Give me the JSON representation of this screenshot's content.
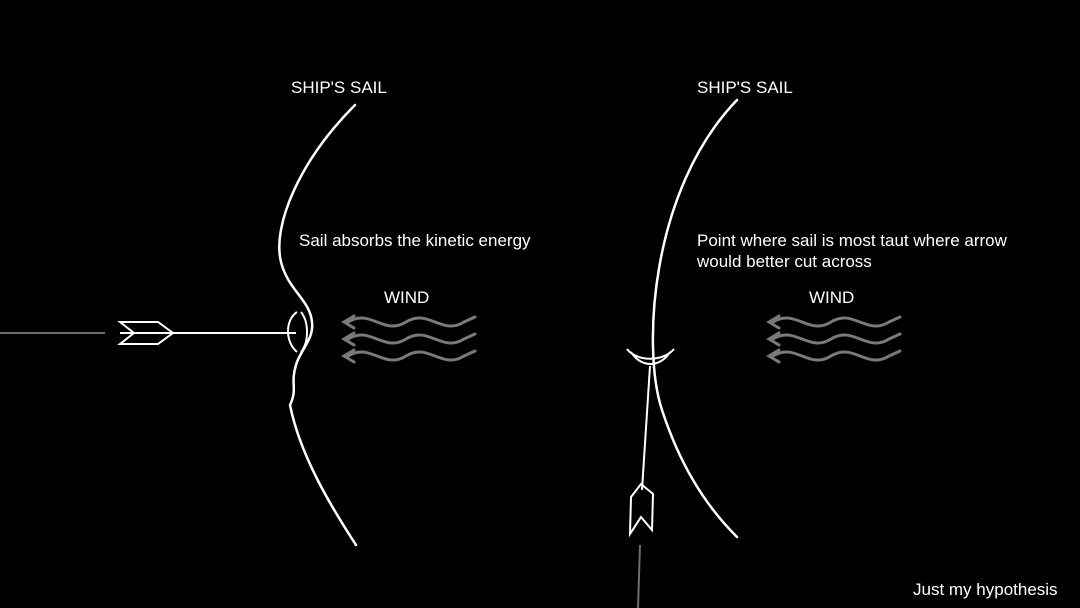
{
  "left_panel": {
    "sail_label": "SHIP'S SAIL",
    "wind_label": "WIND",
    "annotation": "Sail absorbs the kinetic energy"
  },
  "right_panel": {
    "sail_label": "SHIP'S SAIL",
    "wind_label": "WIND",
    "annotation_line1": "Point where sail is most taut where arrow",
    "annotation_line2": "would better cut across"
  },
  "footer": {
    "credit": "Just my hypothesis"
  },
  "colors": {
    "background": "#000000",
    "sail": "#ffffff",
    "arrow": "#ffffff",
    "wind": "#7a7a7a",
    "trail": "#6f6f6f"
  }
}
